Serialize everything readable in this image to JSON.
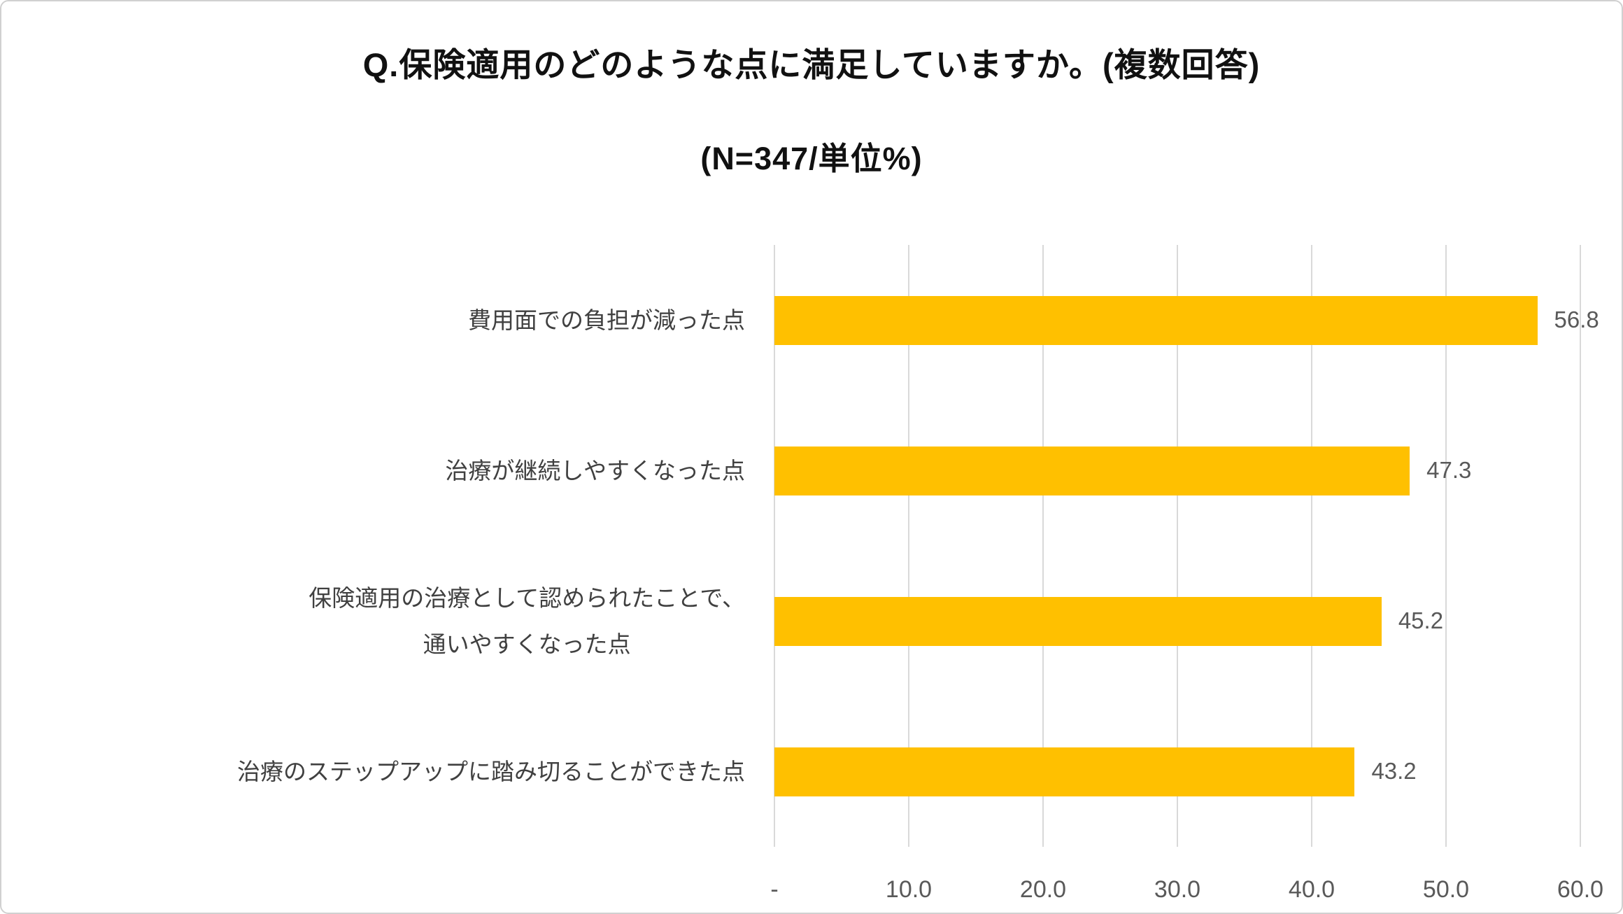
{
  "title": "Q.保険適用のどのような点に満足していますか。(複数回答)",
  "subtitle": "(N=347/単位%)",
  "chart_data": {
    "type": "bar",
    "orientation": "horizontal",
    "title": "Q.保険適用のどのような点に満足していますか。(複数回答)",
    "subtitle": "(N=347/単位%)",
    "categories": [
      "費用面での負担が減った点",
      "治療が継続しやすくなった点",
      "保険適用の治療として認められたことで、\n通いやすくなった点",
      "治療のステップアップに踏み切ることができた点"
    ],
    "values": [
      56.8,
      47.3,
      45.2,
      43.2
    ],
    "value_labels": [
      "56.8",
      "47.3",
      "45.2",
      "43.2"
    ],
    "x_ticks": [
      "-",
      "10.0",
      "20.0",
      "30.0",
      "40.0",
      "50.0",
      "60.0"
    ],
    "x_tick_values": [
      0,
      10,
      20,
      30,
      40,
      50,
      60
    ],
    "xlim": [
      0,
      60
    ],
    "xlabel": "",
    "ylabel": "",
    "grid": true,
    "legend": "none",
    "bar_color": "#FFC000",
    "gridline_color": "#D9D9D9",
    "units": "%",
    "n": 347
  }
}
